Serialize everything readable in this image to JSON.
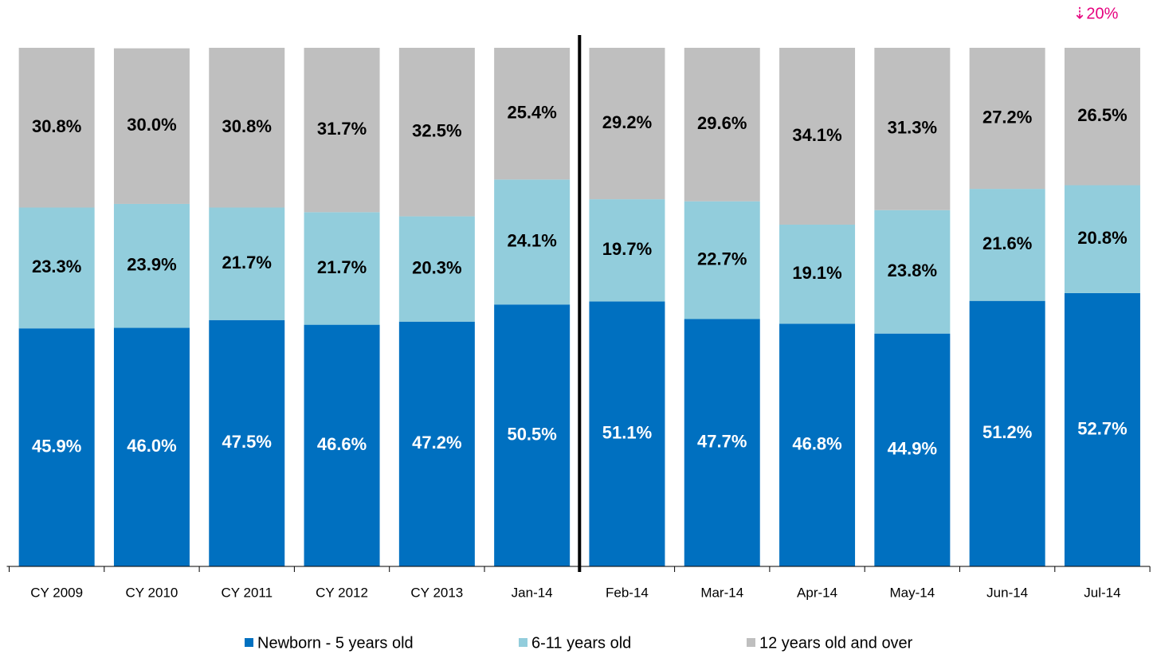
{
  "chart_data": {
    "type": "stacked-bar",
    "annotation": "⇣20%",
    "categories": [
      "CY 2009",
      "CY 2010",
      "CY 2011",
      "CY 2012",
      "CY 2013",
      "Jan-14",
      "Feb-14",
      "Mar-14",
      "Apr-14",
      "May-14",
      "Jun-14",
      "Jul-14"
    ],
    "ylim": [
      0,
      100
    ],
    "legend": "bottom",
    "series": [
      {
        "name": "Newborn - 5 years old",
        "color": "#0070c0",
        "label_color": "#ffffff",
        "values": [
          45.9,
          46.0,
          47.5,
          46.6,
          47.2,
          50.5,
          51.1,
          47.7,
          46.8,
          44.9,
          51.2,
          52.7
        ],
        "value_labels": [
          "45.9%",
          "46.0%",
          "47.5%",
          "46.6%",
          "47.2%",
          "50.5%",
          "51.1%",
          "47.7%",
          "46.8%",
          "44.9%",
          "51.2%",
          "52.7%"
        ]
      },
      {
        "name": "6-11 years old",
        "color": "#92cddc",
        "label_color": "#000000",
        "values": [
          23.3,
          23.9,
          21.7,
          21.7,
          20.3,
          24.1,
          19.7,
          22.7,
          19.1,
          23.8,
          21.6,
          20.8
        ],
        "value_labels": [
          "23.3%",
          "23.9%",
          "21.7%",
          "21.7%",
          "20.3%",
          "24.1%",
          "19.7%",
          "22.7%",
          "19.1%",
          "23.8%",
          "21.6%",
          "20.8%"
        ]
      },
      {
        "name": "12 years old and over",
        "color": "#bfbfbf",
        "label_color": "#000000",
        "values": [
          30.8,
          30.0,
          30.8,
          31.7,
          32.5,
          25.4,
          29.2,
          29.6,
          34.1,
          31.3,
          27.2,
          26.5
        ],
        "value_labels": [
          "30.8%",
          "30.0%",
          "30.8%",
          "31.7%",
          "32.5%",
          "25.4%",
          "29.2%",
          "29.6%",
          "34.1%",
          "31.3%",
          "27.2%",
          "26.5%"
        ]
      }
    ]
  }
}
